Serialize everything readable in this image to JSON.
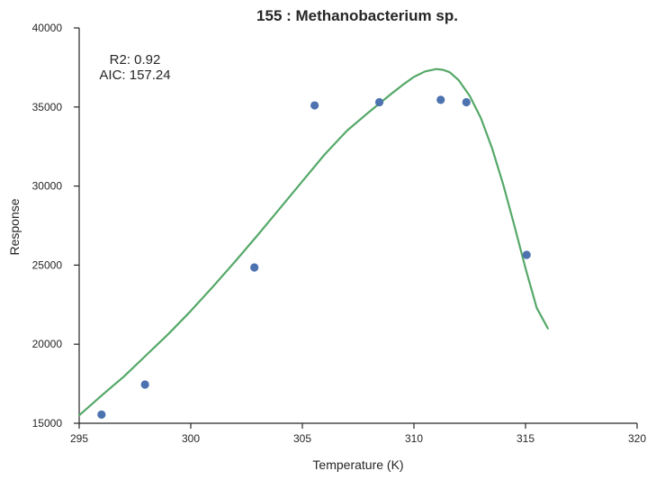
{
  "chart_data": {
    "type": "scatter",
    "title": "155 : Methanobacterium sp.",
    "xlabel": "Temperature (K)",
    "ylabel": "Response",
    "xlim": [
      295,
      320
    ],
    "ylim": [
      15000,
      40000
    ],
    "xticks": [
      295,
      300,
      305,
      310,
      315,
      320
    ],
    "yticks": [
      15000,
      20000,
      25000,
      30000,
      35000,
      40000
    ],
    "annotations": {
      "r2": "R2: 0.92",
      "aic": "AIC: 157.24"
    },
    "grid": false,
    "series": [
      {
        "kind": "scatter",
        "color": "#4c72b0",
        "x": [
          296.0,
          297.95,
          302.85,
          305.55,
          308.45,
          311.2,
          312.35,
          315.05
        ],
        "y": [
          15550,
          17450,
          24850,
          35100,
          35300,
          35450,
          35300,
          25650
        ]
      },
      {
        "kind": "line",
        "color": "#55a868",
        "x": [
          295.0,
          296.0,
          297.0,
          298.0,
          299.0,
          300.0,
          301.0,
          302.0,
          303.0,
          304.0,
          305.0,
          306.0,
          307.0,
          308.0,
          309.0,
          309.5,
          310.0,
          310.5,
          311.0,
          311.3,
          311.6,
          312.0,
          312.5,
          313.0,
          313.5,
          314.0,
          314.5,
          315.0,
          315.5,
          316.0
        ],
        "y": [
          15500,
          16750,
          17950,
          19300,
          20650,
          22100,
          23650,
          25250,
          26900,
          28600,
          30300,
          32000,
          33500,
          34700,
          35850,
          36400,
          36900,
          37250,
          37400,
          37350,
          37200,
          36700,
          35700,
          34300,
          32400,
          30100,
          27500,
          24800,
          22300,
          21000
        ]
      }
    ]
  }
}
